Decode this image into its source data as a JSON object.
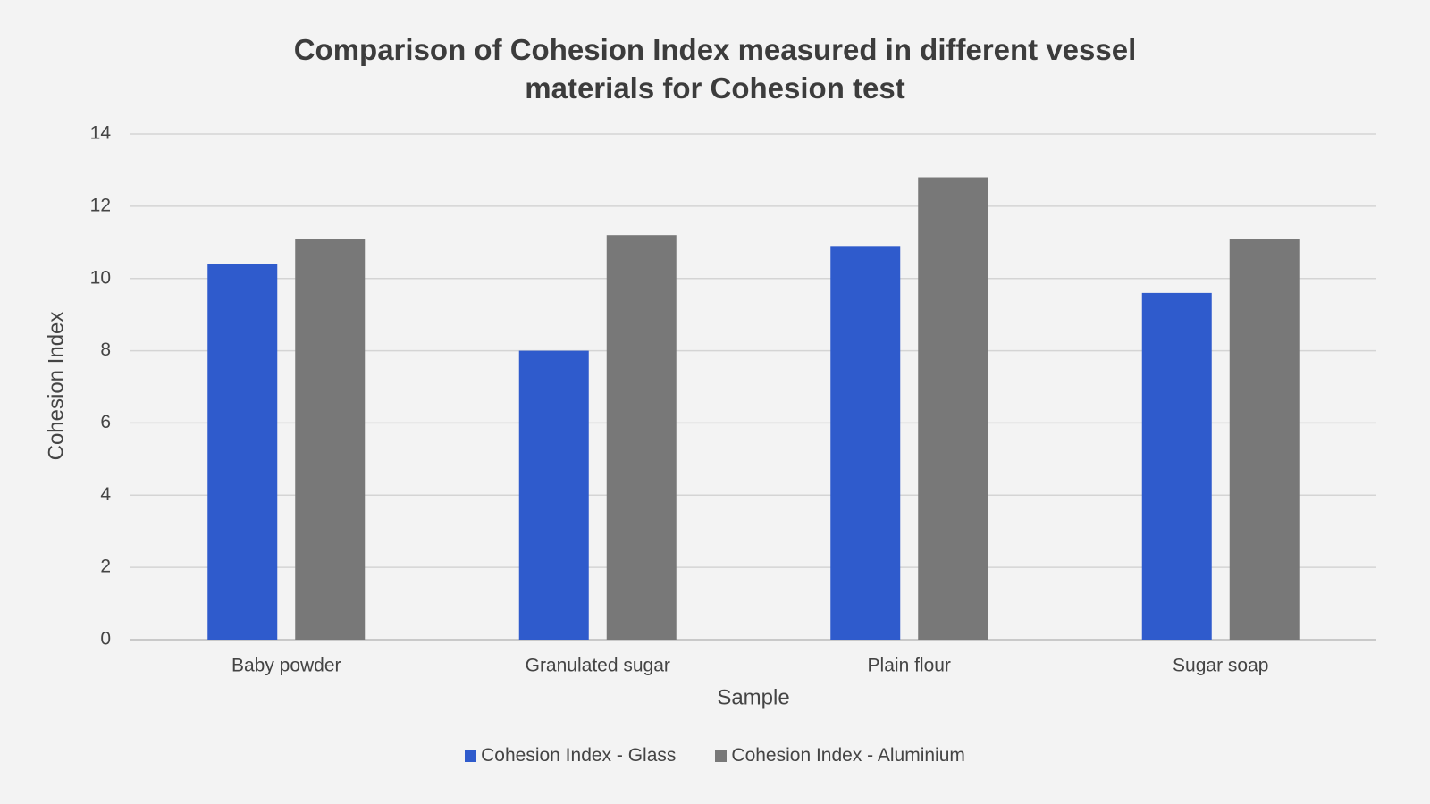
{
  "chart_data": {
    "type": "bar",
    "title": "Comparison of Cohesion Index measured in different vessel materials for Cohesion test",
    "x_label": "Sample",
    "y_label": "Cohesion Index",
    "categories": [
      "Baby powder",
      "Granulated sugar",
      "Plain flour",
      "Sugar soap"
    ],
    "series": [
      {
        "name": "Cohesion Index - Glass",
        "color": "#2f5bcc",
        "values": [
          10.4,
          8.0,
          10.9,
          9.6
        ]
      },
      {
        "name": "Cohesion Index - Aluminium",
        "color": "#787878",
        "values": [
          11.1,
          11.2,
          12.8,
          11.1
        ]
      }
    ],
    "ylim": [
      0,
      14
    ],
    "yticks": [
      0,
      2,
      4,
      6,
      8,
      10,
      12,
      14
    ],
    "grid": true,
    "legend": "bottom"
  }
}
